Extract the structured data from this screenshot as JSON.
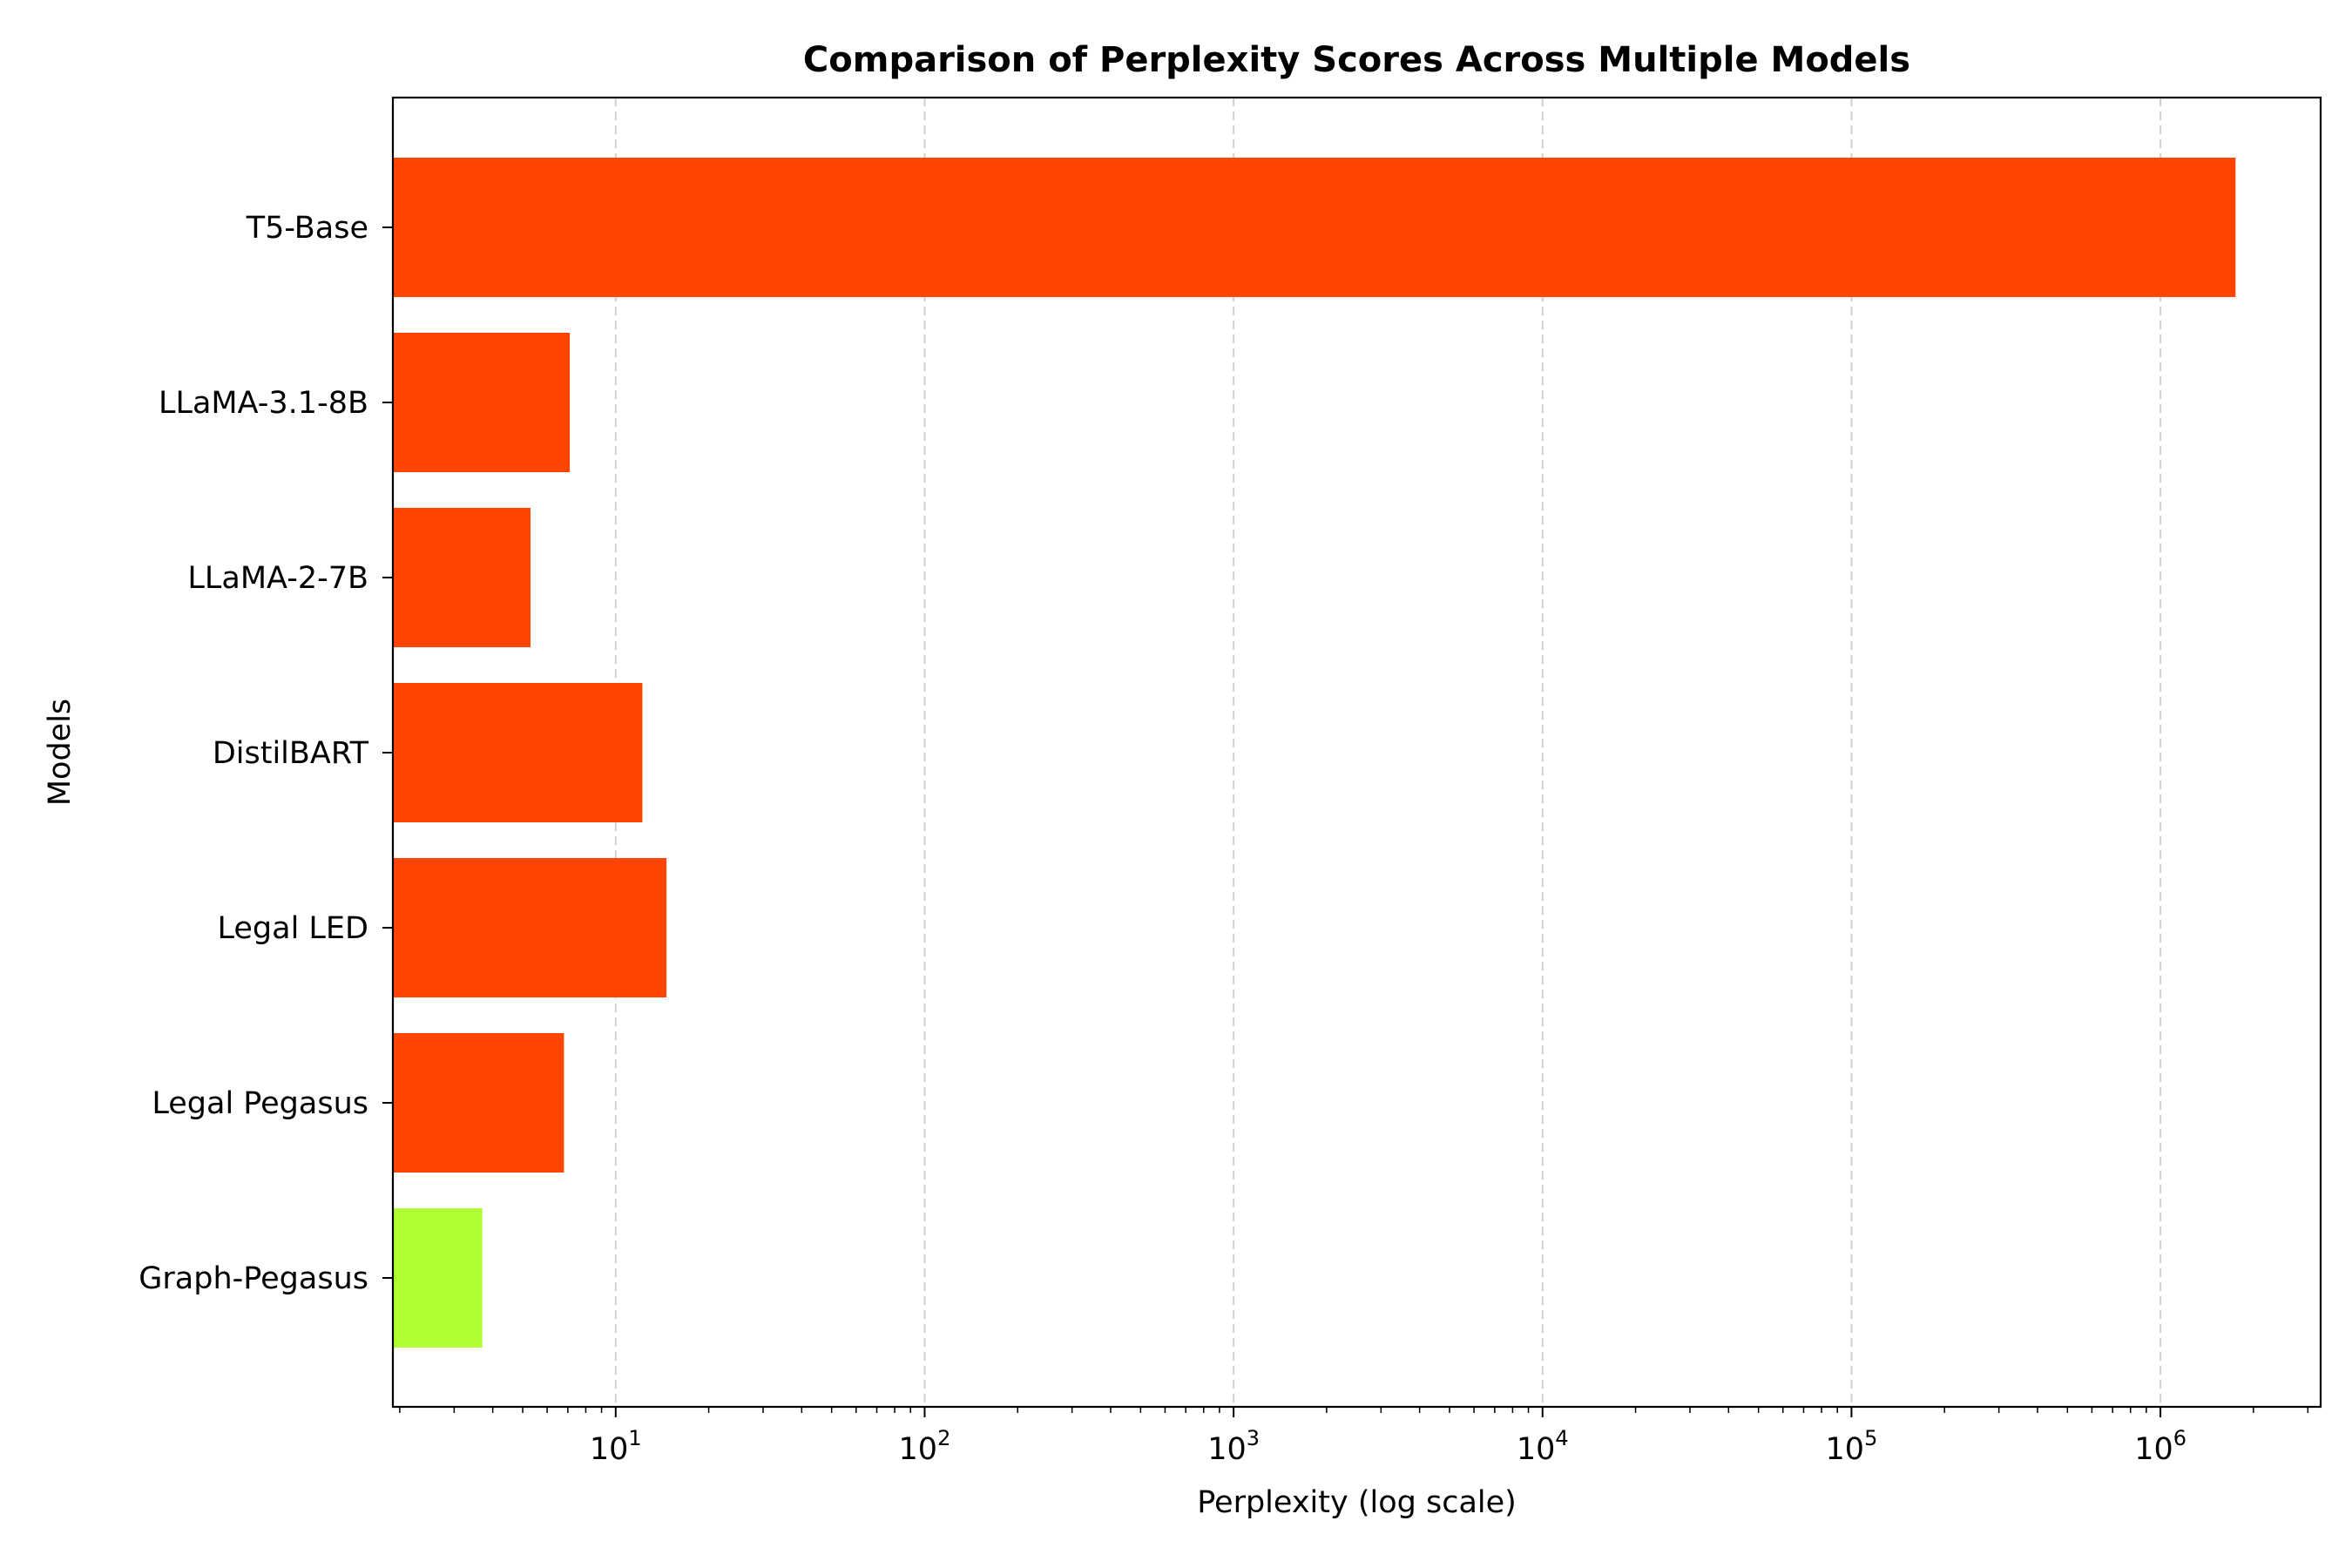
{
  "chart_data": {
    "type": "bar",
    "orientation": "horizontal",
    "title": "Comparison of Perplexity Scores Across Multiple Models",
    "xlabel": "Perplexity (log scale)",
    "ylabel": "Models",
    "x_scale": "log",
    "xlim": [
      1.9,
      3300000
    ],
    "grid": "x-major-dashed",
    "x_ticks": [
      {
        "value": 10,
        "base": "10",
        "exp": "1"
      },
      {
        "value": 100,
        "base": "10",
        "exp": "2"
      },
      {
        "value": 1000,
        "base": "10",
        "exp": "3"
      },
      {
        "value": 10000,
        "base": "10",
        "exp": "4"
      },
      {
        "value": 100000,
        "base": "10",
        "exp": "5"
      },
      {
        "value": 1000000,
        "base": "10",
        "exp": "6"
      }
    ],
    "categories": [
      "T5-Base",
      "LLaMA-3.1-8B",
      "LLaMA-2-7B",
      "DistilBART",
      "Legal LED",
      "Legal Pegasus",
      "Graph-Pegasus"
    ],
    "values": [
      1750000,
      7.1,
      5.3,
      12.2,
      14.6,
      6.8,
      3.7
    ],
    "colors": [
      "#ff4500",
      "#ff4500",
      "#ff4500",
      "#ff4500",
      "#ff4500",
      "#ff4500",
      "#adff2f"
    ]
  }
}
